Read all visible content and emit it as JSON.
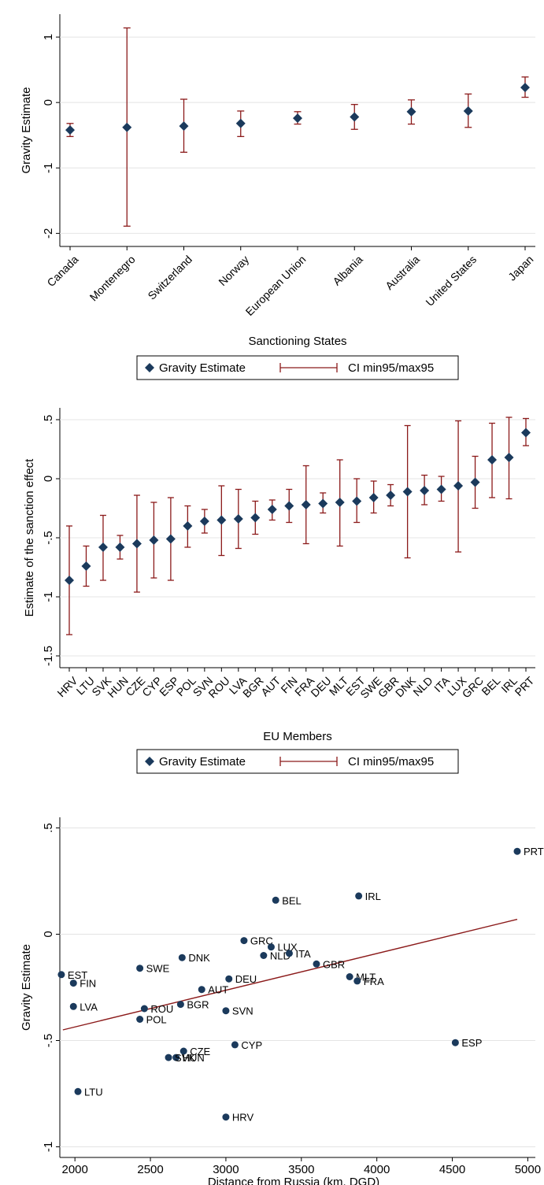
{
  "colors": {
    "marker": "#1b3a5c",
    "ci": "#8b1a1a",
    "fit": "#8b1a1a",
    "label": "#1b3a5c",
    "axis": "#000000"
  },
  "chart_data": [
    {
      "type": "scatter",
      "subtype": "point-with-error-bars",
      "xlabel": "Sanctioning States",
      "ylabel": "Gravity Estimate",
      "ylim": [
        -2.2,
        1.35
      ],
      "yticks": [
        1,
        0,
        -1,
        -2
      ],
      "ytick_labels": [
        "1",
        "0",
        "-1",
        "-2"
      ],
      "categories": [
        "Canada",
        "Montenegro",
        "Switzerland",
        "Norway",
        "European Union",
        "Albania",
        "Australia",
        "United States",
        "Japan"
      ],
      "series": [
        {
          "name": "Gravity Estimate",
          "values": [
            -0.42,
            -0.38,
            -0.36,
            -0.32,
            -0.24,
            -0.22,
            -0.14,
            -0.13,
            0.23
          ]
        },
        {
          "name": "CI min95/max95",
          "low": [
            -0.52,
            -1.89,
            -0.76,
            -0.52,
            -0.33,
            -0.41,
            -0.33,
            -0.38,
            0.08
          ],
          "high": [
            -0.32,
            1.14,
            0.05,
            -0.13,
            -0.14,
            -0.03,
            0.04,
            0.13,
            0.39
          ]
        }
      ],
      "legend": [
        "Gravity Estimate",
        "CI min95/max95"
      ],
      "legend_position": "bottom",
      "grid": true
    },
    {
      "type": "scatter",
      "subtype": "point-with-error-bars",
      "xlabel": "EU Members",
      "ylabel": "Estimate of the sanction effect",
      "ylim": [
        -1.6,
        0.6
      ],
      "yticks": [
        0.5,
        0,
        -0.5,
        -1,
        -1.5
      ],
      "ytick_labels": [
        ".5",
        "0",
        "-.5",
        "-1",
        "-1.5"
      ],
      "categories": [
        "HRV",
        "LTU",
        "SVK",
        "HUN",
        "CZE",
        "CYP",
        "ESP",
        "POL",
        "SVN",
        "ROU",
        "LVA",
        "BGR",
        "AUT",
        "FIN",
        "FRA",
        "DEU",
        "MLT",
        "EST",
        "SWE",
        "GBR",
        "DNK",
        "NLD",
        "ITA",
        "LUX",
        "GRC",
        "BEL",
        "IRL",
        "PRT"
      ],
      "series": [
        {
          "name": "Gravity Estimate",
          "values": [
            -0.86,
            -0.74,
            -0.58,
            -0.58,
            -0.55,
            -0.52,
            -0.51,
            -0.4,
            -0.36,
            -0.35,
            -0.34,
            -0.33,
            -0.26,
            -0.23,
            -0.22,
            -0.21,
            -0.2,
            -0.19,
            -0.16,
            -0.14,
            -0.11,
            -0.1,
            -0.09,
            -0.06,
            -0.03,
            0.16,
            0.18,
            0.39
          ]
        },
        {
          "name": "CI min95/max95",
          "low": [
            -1.32,
            -0.91,
            -0.86,
            -0.68,
            -0.96,
            -0.84,
            -0.86,
            -0.58,
            -0.46,
            -0.65,
            -0.59,
            -0.47,
            -0.35,
            -0.37,
            -0.55,
            -0.29,
            -0.57,
            -0.37,
            -0.29,
            -0.23,
            -0.67,
            -0.22,
            -0.19,
            -0.62,
            -0.25,
            -0.16,
            -0.17,
            0.28
          ],
          "high": [
            -0.4,
            -0.57,
            -0.31,
            -0.48,
            -0.14,
            -0.2,
            -0.16,
            -0.23,
            -0.26,
            -0.06,
            -0.09,
            -0.19,
            -0.18,
            -0.09,
            0.11,
            -0.12,
            0.16,
            0.0,
            -0.02,
            -0.05,
            0.45,
            0.03,
            0.02,
            0.49,
            0.19,
            0.47,
            0.52,
            0.51
          ]
        }
      ],
      "legend": [
        "Gravity Estimate",
        "CI min95/max95"
      ],
      "legend_position": "bottom",
      "grid": true
    },
    {
      "type": "scatter",
      "subtype": "scatter-with-linear-fit",
      "xlabel": "Distance from Russia (km, DGD)",
      "ylabel": "Gravity Estimate",
      "xlim": [
        1900,
        5050
      ],
      "ylim": [
        -1.05,
        0.55
      ],
      "xticks": [
        2000,
        2500,
        3000,
        3500,
        4000,
        4500,
        5000
      ],
      "xtick_labels": [
        "2000",
        "2500",
        "3000",
        "3500",
        "4000",
        "4500",
        "5000"
      ],
      "yticks": [
        0.5,
        0,
        -0.5,
        -1
      ],
      "ytick_labels": [
        ".5",
        "0",
        "-.5",
        "-1"
      ],
      "points": [
        {
          "label": "PRT",
          "x": 4930,
          "y": 0.39
        },
        {
          "label": "IRL",
          "x": 3880,
          "y": 0.18
        },
        {
          "label": "BEL",
          "x": 3330,
          "y": 0.16
        },
        {
          "label": "GRC",
          "x": 3120,
          "y": -0.03
        },
        {
          "label": "LUX",
          "x": 3300,
          "y": -0.06
        },
        {
          "label": "NLD",
          "x": 3250,
          "y": -0.1
        },
        {
          "label": "ITA",
          "x": 3420,
          "y": -0.09
        },
        {
          "label": "DNK",
          "x": 2710,
          "y": -0.11
        },
        {
          "label": "GBR",
          "x": 3600,
          "y": -0.14
        },
        {
          "label": "SWE",
          "x": 2430,
          "y": -0.16
        },
        {
          "label": "EST",
          "x": 1910,
          "y": -0.19
        },
        {
          "label": "DEU",
          "x": 3020,
          "y": -0.21
        },
        {
          "label": "MLT",
          "x": 3820,
          "y": -0.2
        },
        {
          "label": "FRA",
          "x": 3870,
          "y": -0.22
        },
        {
          "label": "FIN",
          "x": 1990,
          "y": -0.23
        },
        {
          "label": "AUT",
          "x": 2840,
          "y": -0.26
        },
        {
          "label": "LVA",
          "x": 1990,
          "y": -0.34
        },
        {
          "label": "BGR",
          "x": 2700,
          "y": -0.33
        },
        {
          "label": "ROU",
          "x": 2460,
          "y": -0.35
        },
        {
          "label": "SVN",
          "x": 3000,
          "y": -0.36
        },
        {
          "label": "POL",
          "x": 2430,
          "y": -0.4
        },
        {
          "label": "CYP",
          "x": 3060,
          "y": -0.52
        },
        {
          "label": "ESP",
          "x": 4520,
          "y": -0.51
        },
        {
          "label": "CZE",
          "x": 2720,
          "y": -0.55
        },
        {
          "label": "HUN",
          "x": 2670,
          "y": -0.58
        },
        {
          "label": "SVK",
          "x": 2620,
          "y": -0.58
        },
        {
          "label": "LTU",
          "x": 2020,
          "y": -0.74
        },
        {
          "label": "HRV",
          "x": 3000,
          "y": -0.86
        }
      ],
      "fit_line": {
        "x": [
          1920,
          4930
        ],
        "y": [
          -0.45,
          0.07
        ]
      },
      "grid": true
    }
  ]
}
